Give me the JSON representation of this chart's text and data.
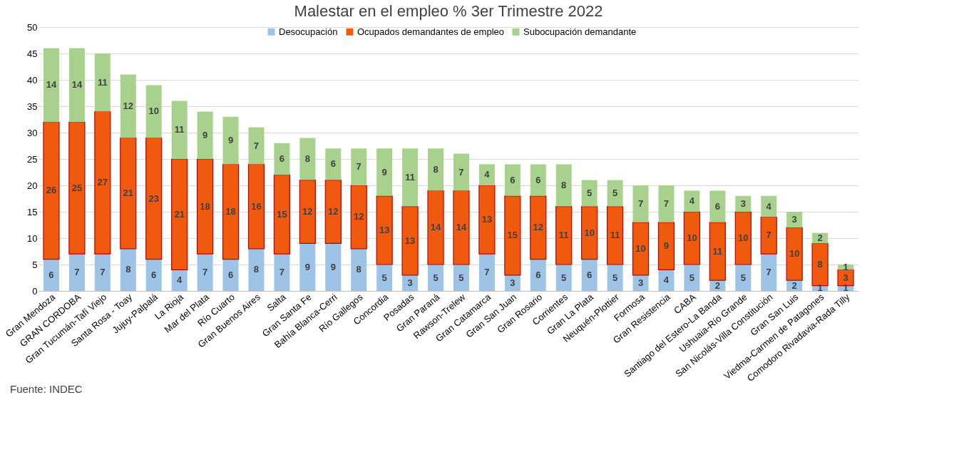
{
  "chart_data": {
    "type": "bar",
    "title": "Malestar en el empleo % 3er Trimestre 2022",
    "stacked": true,
    "data_labels": true,
    "legend": "top",
    "grid": "y",
    "categories": [
      "Gran Mendoza",
      "GRAN CORDOBA",
      "Gran Tucumán-Tafí Viejo",
      "Santa Rosa - Toay",
      "Jujuy-Palpalá",
      "La Rioja",
      "Mar del Plata",
      "Río Cuarto",
      "Gran Buenos Aires",
      "Salta",
      "Gran Santa Fe",
      "Bahía Blanca-Cerri",
      "Río Gallegos",
      "Concordia",
      "Posadas",
      "Gran Paraná",
      "Rawson-Trelew",
      "Gran Catamarca",
      "Gran San Juan",
      "Gran Rosario",
      "Corrientes",
      "Gran La Plata",
      "Neuquén-Plottier",
      "Formosa",
      "Gran Resistencia",
      "CABA",
      "Santiago del Estero-La Banda",
      "Ushuaia-Río Grande",
      "San Nicolás-Villa Constitución",
      "Gran San Luis",
      "Viedma-Carmen de Patagones",
      "Comodoro Rivadavia-Rada Tilly"
    ],
    "series": [
      {
        "name": "Desocupación",
        "color": "#9dc3e6",
        "values": [
          6,
          7,
          7,
          8,
          6,
          4,
          7,
          6,
          8,
          7,
          9,
          9,
          8,
          5,
          3,
          5,
          5,
          7,
          3,
          6,
          5,
          6,
          5,
          3,
          4,
          5,
          2,
          5,
          7,
          2,
          1,
          1
        ]
      },
      {
        "name": "Ocupados demandantes de empleo",
        "color": "#f05a0f",
        "values": [
          26,
          25,
          27,
          21,
          23,
          21,
          18,
          18,
          16,
          15,
          12,
          12,
          12,
          13,
          13,
          14,
          14,
          13,
          15,
          12,
          11,
          10,
          11,
          10,
          9,
          10,
          11,
          10,
          7,
          10,
          8,
          3
        ]
      },
      {
        "name": "Subocupación demandante",
        "color": "#a9d18e",
        "values": [
          14,
          14,
          11,
          12,
          10,
          11,
          9,
          9,
          7,
          6,
          8,
          6,
          7,
          9,
          11,
          8,
          7,
          4,
          6,
          6,
          8,
          5,
          5,
          7,
          7,
          4,
          6,
          3,
          4,
          3,
          2,
          1
        ]
      }
    ],
    "ylim": [
      0,
      50
    ],
    "yticks": [
      0,
      5,
      10,
      15,
      20,
      25,
      30,
      35,
      40,
      45,
      50
    ],
    "annotations": [
      "Fuente: INDEC"
    ]
  }
}
